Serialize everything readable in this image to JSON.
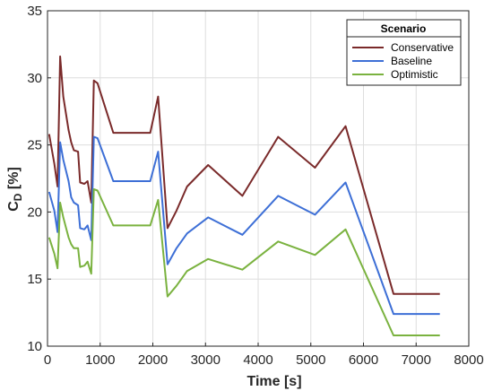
{
  "chart_data": {
    "type": "line",
    "xlabel": "Time [s]",
    "ylabel_main": "C",
    "ylabel_sub": "D",
    "ylabel_unit": " [%]",
    "xlim": [
      0,
      8000
    ],
    "ylim": [
      10,
      35
    ],
    "xticks": [
      0,
      1000,
      2000,
      3000,
      4000,
      5000,
      6000,
      7000,
      8000
    ],
    "yticks": [
      10,
      15,
      20,
      25,
      30,
      35
    ],
    "grid": true,
    "legend": {
      "title": "Scenario",
      "position": "top-right"
    },
    "series": [
      {
        "name": "Conservative",
        "color": "#7a2a2a",
        "points": [
          [
            30,
            25.8
          ],
          [
            130,
            23.6
          ],
          [
            190,
            21.9
          ],
          [
            240,
            31.6
          ],
          [
            300,
            28.6
          ],
          [
            400,
            26.1
          ],
          [
            450,
            25.2
          ],
          [
            500,
            24.6
          ],
          [
            580,
            24.5
          ],
          [
            620,
            22.2
          ],
          [
            700,
            22.1
          ],
          [
            760,
            22.3
          ],
          [
            830,
            20.7
          ],
          [
            880,
            29.8
          ],
          [
            950,
            29.6
          ],
          [
            1250,
            25.9
          ],
          [
            1950,
            25.9
          ],
          [
            2100,
            28.6
          ],
          [
            2280,
            18.8
          ],
          [
            2450,
            20.1
          ],
          [
            2650,
            21.9
          ],
          [
            3050,
            23.5
          ],
          [
            3700,
            21.2
          ],
          [
            4380,
            25.6
          ],
          [
            5080,
            23.3
          ],
          [
            5660,
            26.4
          ],
          [
            6570,
            13.9
          ],
          [
            7450,
            13.9
          ]
        ]
      },
      {
        "name": "Baseline",
        "color": "#3d6fd6",
        "points": [
          [
            30,
            21.5
          ],
          [
            130,
            20.1
          ],
          [
            190,
            18.5
          ],
          [
            240,
            25.2
          ],
          [
            300,
            23.9
          ],
          [
            400,
            22.3
          ],
          [
            450,
            21.1
          ],
          [
            500,
            20.7
          ],
          [
            580,
            20.5
          ],
          [
            620,
            18.8
          ],
          [
            700,
            18.7
          ],
          [
            760,
            19.0
          ],
          [
            830,
            17.9
          ],
          [
            880,
            25.6
          ],
          [
            950,
            25.5
          ],
          [
            1250,
            22.3
          ],
          [
            1950,
            22.3
          ],
          [
            2100,
            24.5
          ],
          [
            2280,
            16.1
          ],
          [
            2450,
            17.3
          ],
          [
            2650,
            18.4
          ],
          [
            3050,
            19.6
          ],
          [
            3700,
            18.3
          ],
          [
            4380,
            21.2
          ],
          [
            5080,
            19.8
          ],
          [
            5660,
            22.2
          ],
          [
            6570,
            12.4
          ],
          [
            7450,
            12.4
          ]
        ]
      },
      {
        "name": "Optimistic",
        "color": "#7ab23f",
        "points": [
          [
            30,
            18.1
          ],
          [
            130,
            16.9
          ],
          [
            190,
            15.8
          ],
          [
            240,
            20.7
          ],
          [
            300,
            19.6
          ],
          [
            400,
            18.1
          ],
          [
            450,
            17.6
          ],
          [
            500,
            17.3
          ],
          [
            580,
            17.3
          ],
          [
            620,
            15.9
          ],
          [
            700,
            16.0
          ],
          [
            760,
            16.3
          ],
          [
            830,
            15.4
          ],
          [
            880,
            21.7
          ],
          [
            950,
            21.6
          ],
          [
            1250,
            19.0
          ],
          [
            1950,
            19.0
          ],
          [
            2100,
            20.9
          ],
          [
            2280,
            13.7
          ],
          [
            2450,
            14.5
          ],
          [
            2650,
            15.6
          ],
          [
            3050,
            16.5
          ],
          [
            3700,
            15.7
          ],
          [
            4380,
            17.8
          ],
          [
            5080,
            16.8
          ],
          [
            5660,
            18.7
          ],
          [
            6570,
            10.8
          ],
          [
            7450,
            10.8
          ]
        ]
      }
    ]
  }
}
